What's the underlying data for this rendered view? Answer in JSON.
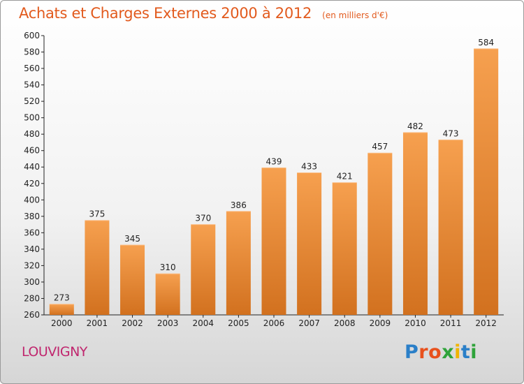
{
  "title": "Achats et Charges Externes 2000 à 2012",
  "subtitle": "(en milliers d'€)",
  "place": "LOUVIGNY",
  "logo": {
    "letters": [
      {
        "char": "P",
        "color": "#2a7fc8"
      },
      {
        "char": "r",
        "color": "#e8511d"
      },
      {
        "char": "o",
        "color": "#e8511d"
      },
      {
        "char": "x",
        "color": "#2fa33a"
      },
      {
        "char": "i",
        "color": "#f0b400"
      },
      {
        "char": "t",
        "color": "#2a7fc8"
      },
      {
        "char": "i",
        "color": "#2fa33a"
      }
    ]
  },
  "colors": {
    "title": "#e25a1d",
    "place": "#c0266e",
    "bar_top": "#f6a04f",
    "bar_bottom": "#d2711f"
  },
  "chart_data": {
    "type": "bar",
    "categories": [
      "2000",
      "2001",
      "2002",
      "2003",
      "2004",
      "2005",
      "2006",
      "2007",
      "2008",
      "2009",
      "2010",
      "2011",
      "2012"
    ],
    "values": [
      273,
      375,
      345,
      310,
      370,
      386,
      439,
      433,
      421,
      457,
      482,
      473,
      584
    ],
    "ylim": [
      260,
      600
    ],
    "yticks": [
      260,
      280,
      300,
      320,
      340,
      360,
      380,
      400,
      420,
      440,
      460,
      480,
      500,
      520,
      540,
      560,
      580,
      600
    ],
    "grid": false,
    "data_labels": true
  }
}
